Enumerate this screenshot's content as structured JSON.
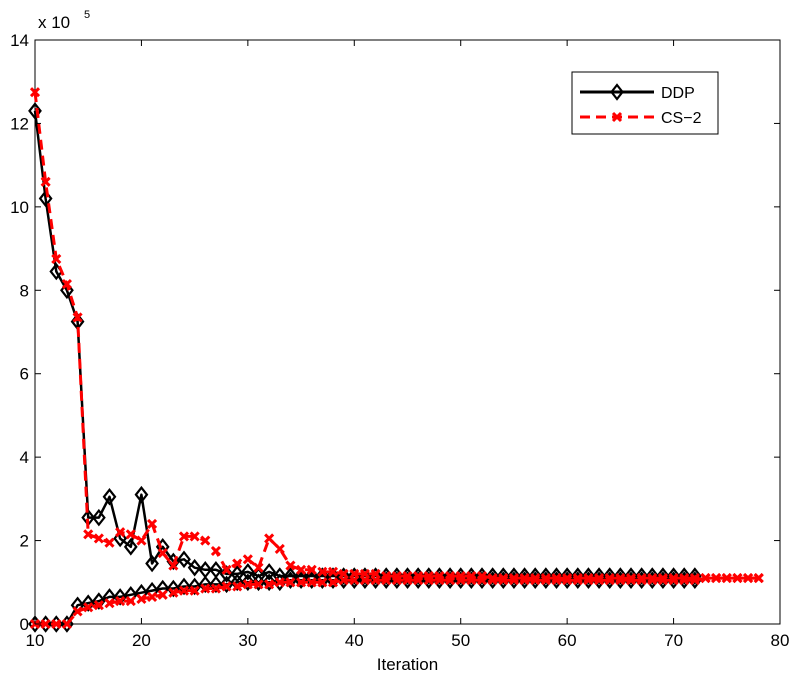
{
  "chart_data": {
    "type": "line",
    "title": "",
    "xlabel": "Iteration",
    "ylabel": "",
    "y_multiplier_label": {
      "prefix": "x 10",
      "exponent": "5"
    },
    "xlim": [
      10,
      80
    ],
    "ylim": [
      0,
      14
    ],
    "x_ticks": [
      10,
      20,
      30,
      40,
      50,
      60,
      70,
      80
    ],
    "y_ticks": [
      0,
      2,
      4,
      6,
      8,
      10,
      12,
      14
    ],
    "y_tick_labels": [
      "0",
      "2",
      "4",
      "6",
      "8",
      "10",
      "12",
      "14"
    ],
    "grid": false,
    "legend_position": "top-right",
    "series": [
      {
        "name": "DDP",
        "color": "#000000",
        "line_style": "solid",
        "marker": "diamond",
        "curves": [
          {
            "x": [
              10,
              11,
              12,
              13,
              14,
              15,
              16,
              17,
              18,
              19,
              20,
              21,
              22,
              23,
              24,
              25,
              26,
              27,
              28,
              29,
              30,
              31,
              32,
              33,
              34,
              35,
              36,
              37,
              38,
              39,
              40,
              41,
              42,
              43,
              44,
              45,
              46,
              47,
              48,
              49,
              50,
              51,
              52,
              53,
              54,
              55,
              56,
              57,
              58,
              59,
              60,
              61,
              62,
              63,
              64,
              65,
              66,
              67,
              68,
              69,
              70,
              71,
              72
            ],
            "y": [
              12.3,
              10.2,
              8.45,
              8.0,
              7.25,
              2.55,
              2.55,
              3.05,
              2.05,
              1.85,
              3.1,
              1.45,
              1.85,
              1.5,
              1.55,
              1.35,
              1.3,
              1.3,
              1.2,
              1.2,
              1.25,
              1.15,
              1.25,
              1.15,
              1.15,
              1.15,
              1.15,
              1.15,
              1.15,
              1.15,
              1.15,
              1.15,
              1.15,
              1.15,
              1.15,
              1.15,
              1.15,
              1.15,
              1.15,
              1.15,
              1.15,
              1.15,
              1.15,
              1.15,
              1.15,
              1.15,
              1.15,
              1.15,
              1.15,
              1.15,
              1.15,
              1.15,
              1.15,
              1.15,
              1.15,
              1.15,
              1.15,
              1.15,
              1.15,
              1.15,
              1.15,
              1.15,
              1.15
            ]
          },
          {
            "x": [
              10,
              11,
              12,
              13,
              14,
              15,
              16,
              17,
              18,
              19,
              20,
              21,
              22,
              23,
              24,
              25,
              26,
              27,
              28,
              29,
              30,
              31,
              32,
              33,
              34,
              35,
              36,
              37,
              38,
              39,
              40,
              41,
              42,
              43,
              44,
              45,
              46,
              47,
              48,
              49,
              50,
              51,
              52,
              53,
              54,
              55,
              56,
              57,
              58,
              59,
              60,
              61,
              62,
              63,
              64,
              65,
              66,
              67,
              68,
              69,
              70,
              71,
              72
            ],
            "y": [
              0.0,
              0.0,
              0.0,
              0.0,
              0.45,
              0.5,
              0.55,
              0.65,
              0.65,
              0.7,
              0.75,
              0.8,
              0.85,
              0.85,
              0.9,
              0.9,
              0.95,
              0.95,
              0.95,
              1.0,
              1.0,
              1.0,
              1.0,
              1.0,
              1.05,
              1.05,
              1.05,
              1.05,
              1.05,
              1.05,
              1.05,
              1.05,
              1.05,
              1.05,
              1.05,
              1.05,
              1.05,
              1.05,
              1.05,
              1.05,
              1.05,
              1.05,
              1.05,
              1.05,
              1.05,
              1.05,
              1.05,
              1.05,
              1.05,
              1.05,
              1.05,
              1.05,
              1.05,
              1.05,
              1.05,
              1.05,
              1.05,
              1.05,
              1.05,
              1.05,
              1.05,
              1.05,
              1.05
            ]
          }
        ]
      },
      {
        "name": "CS−2",
        "color": "#ff0000",
        "line_style": "dashed",
        "marker": "x",
        "curves": [
          {
            "x": [
              10,
              11,
              12,
              13,
              14,
              15,
              16,
              17,
              18,
              19,
              20,
              21,
              22,
              23,
              24,
              25,
              26,
              27,
              28,
              29,
              30,
              31,
              32,
              33,
              34,
              35,
              36,
              37,
              38,
              39,
              40,
              41,
              42,
              43,
              44,
              45,
              46,
              47,
              48,
              49,
              50,
              51,
              52,
              53,
              54,
              55,
              56,
              57,
              58,
              59,
              60,
              61,
              62,
              63,
              64,
              65,
              66,
              67,
              68,
              69,
              70,
              71,
              72,
              73,
              74,
              75,
              76,
              77,
              78
            ],
            "y": [
              12.75,
              10.6,
              8.75,
              8.15,
              7.35,
              2.15,
              2.05,
              1.95,
              2.2,
              2.15,
              2.0,
              2.4,
              1.7,
              1.4,
              2.1,
              2.1,
              2.0,
              1.75,
              1.3,
              1.45,
              1.55,
              1.35,
              2.05,
              1.8,
              1.4,
              1.3,
              1.3,
              1.25,
              1.25,
              1.2,
              1.2,
              1.2,
              1.2,
              1.15,
              1.15,
              1.15,
              1.15,
              1.15,
              1.15,
              1.15,
              1.15,
              1.15,
              1.15,
              1.1,
              1.1,
              1.1,
              1.1,
              1.1,
              1.1,
              1.1,
              1.1,
              1.1,
              1.1,
              1.1,
              1.1,
              1.1,
              1.1,
              1.1,
              1.1,
              1.1,
              1.1,
              1.1,
              1.1,
              1.1,
              1.1,
              1.1,
              1.1,
              1.1,
              1.1
            ]
          },
          {
            "x": [
              10,
              11,
              12,
              13,
              14,
              15,
              16,
              17,
              18,
              19,
              20,
              21,
              22,
              23,
              24,
              25,
              26,
              27,
              28,
              29,
              30,
              31,
              32,
              33,
              34,
              35,
              36,
              37,
              38,
              39,
              40,
              41,
              42,
              43,
              44,
              45,
              46,
              47,
              48,
              49,
              50,
              51,
              52,
              53,
              54,
              55,
              56,
              57,
              58,
              59,
              60,
              61,
              62,
              63,
              64,
              65,
              66,
              67,
              68,
              69,
              70,
              71,
              72,
              73,
              74,
              75,
              76,
              77,
              78
            ],
            "y": [
              0.0,
              0.0,
              0.0,
              0.0,
              0.3,
              0.4,
              0.45,
              0.5,
              0.55,
              0.55,
              0.6,
              0.65,
              0.7,
              0.75,
              0.8,
              0.8,
              0.85,
              0.85,
              0.9,
              0.9,
              0.95,
              0.95,
              0.95,
              1.0,
              1.0,
              1.0,
              1.0,
              1.0,
              1.0,
              1.05,
              1.05,
              1.05,
              1.05,
              1.05,
              1.05,
              1.05,
              1.05,
              1.05,
              1.05,
              1.05,
              1.05,
              1.05,
              1.05,
              1.05,
              1.05,
              1.05,
              1.05,
              1.05,
              1.05,
              1.05,
              1.05,
              1.05,
              1.05,
              1.05,
              1.05,
              1.05,
              1.05,
              1.05,
              1.05,
              1.05,
              1.05,
              1.05,
              1.05,
              1.1,
              1.1,
              1.1,
              1.1,
              1.1,
              1.1
            ]
          }
        ]
      }
    ]
  }
}
